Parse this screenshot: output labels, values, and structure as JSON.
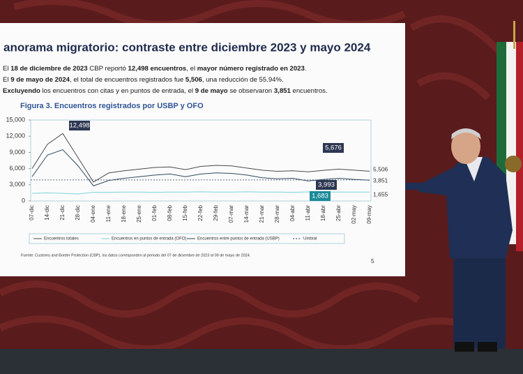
{
  "slide": {
    "title": "anorama migratorio: contraste entre diciembre 2023 y mayo 2024",
    "bullets": [
      [
        {
          "text": "El ",
          "bold": false
        },
        {
          "text": "18 de diciembre de 2023",
          "bold": true
        },
        {
          "text": " CBP reportó ",
          "bold": false
        },
        {
          "text": "12,498 encuentros",
          "bold": true
        },
        {
          "text": ", el ",
          "bold": false
        },
        {
          "text": "mayor número registrado en 2023",
          "bold": true
        },
        {
          "text": ".",
          "bold": false
        }
      ],
      [
        {
          "text": "El ",
          "bold": false
        },
        {
          "text": "9 de mayo de 2024",
          "bold": true
        },
        {
          "text": ", el total de encuentros registrados fue ",
          "bold": false
        },
        {
          "text": "5,506",
          "bold": true
        },
        {
          "text": ", una reducción de 55.94%.",
          "bold": false
        }
      ],
      [
        {
          "text": "Excluyendo",
          "bold": true
        },
        {
          "text": " los encuentros con citas y en puntos de entrada, el ",
          "bold": false
        },
        {
          "text": "9 de mayo",
          "bold": true
        },
        {
          "text": " se observaron ",
          "bold": false
        },
        {
          "text": "3,851",
          "bold": true
        },
        {
          "text": " encuentros.",
          "bold": false
        }
      ]
    ],
    "chart": {
      "type": "line",
      "title": "Figura 3. Encuentros registrados por USBP y OFO",
      "categories": [
        "07-dic",
        "14-dic",
        "21-dic",
        "28-dic",
        "04-ene",
        "11-ene",
        "18-ene",
        "25-ene",
        "01-feb",
        "08-feb",
        "15-feb",
        "22-feb",
        "29-feb",
        "07-mar",
        "14-mar",
        "21-mar",
        "28-mar",
        "04-abr",
        "11-abr",
        "18-abr",
        "25-abr",
        "02-may",
        "09-may"
      ],
      "series": [
        {
          "name": "Encuentros totales",
          "color": "#4a4a4a",
          "values": [
            6000,
            10500,
            12498,
            8000,
            3500,
            5200,
            5600,
            5900,
            6200,
            6300,
            5800,
            6400,
            6600,
            6500,
            6100,
            5700,
            5500,
            5600,
            5400,
            5676,
            5900,
            5700,
            5506
          ]
        },
        {
          "name": "Encuentros en puntos de entrada (OFO)",
          "color": "#7fd3dc",
          "values": [
            1400,
            1500,
            1400,
            1300,
            1600,
            1600,
            1650,
            1650,
            1600,
            1650,
            1650,
            1700,
            1650,
            1650,
            1700,
            1650,
            1650,
            1600,
            1683,
            1650,
            1650,
            1650,
            1655
          ]
        },
        {
          "name": "Encuentros entre puntos de entrada (USBP)",
          "color": "#2e4a5e",
          "values": [
            4500,
            8500,
            9500,
            6500,
            2800,
            3800,
            4200,
            4500,
            4800,
            5000,
            4500,
            5000,
            5200,
            5100,
            4800,
            4300,
            4100,
            4200,
            3700,
            3993,
            4200,
            4000,
            3851
          ]
        }
      ],
      "threshold": {
        "name": "Umbral",
        "value": 3900,
        "color": "#1f3864"
      },
      "annotations": [
        "12,498",
        "5,676",
        "3,993",
        "1,683"
      ],
      "end_labels": [
        "5,506",
        "1,655",
        "3,851"
      ],
      "ylim": [
        0,
        15000
      ],
      "yticks": [
        {
          "value": 0,
          "label": "0"
        },
        {
          "value": 3000,
          "label": "3,000"
        },
        {
          "value": 6000,
          "label": "6,000"
        },
        {
          "value": 9000,
          "label": "9,000"
        },
        {
          "value": 12000,
          "label": "12,000"
        },
        {
          "value": 15000,
          "label": "15,000"
        }
      ]
    },
    "source": "Fuente: Customs and Border Protection (CBP), los datos corresponden al periodo del 07 de diciembre de 2023 al 09 de mayo de 2024.",
    "page_number": "5"
  }
}
